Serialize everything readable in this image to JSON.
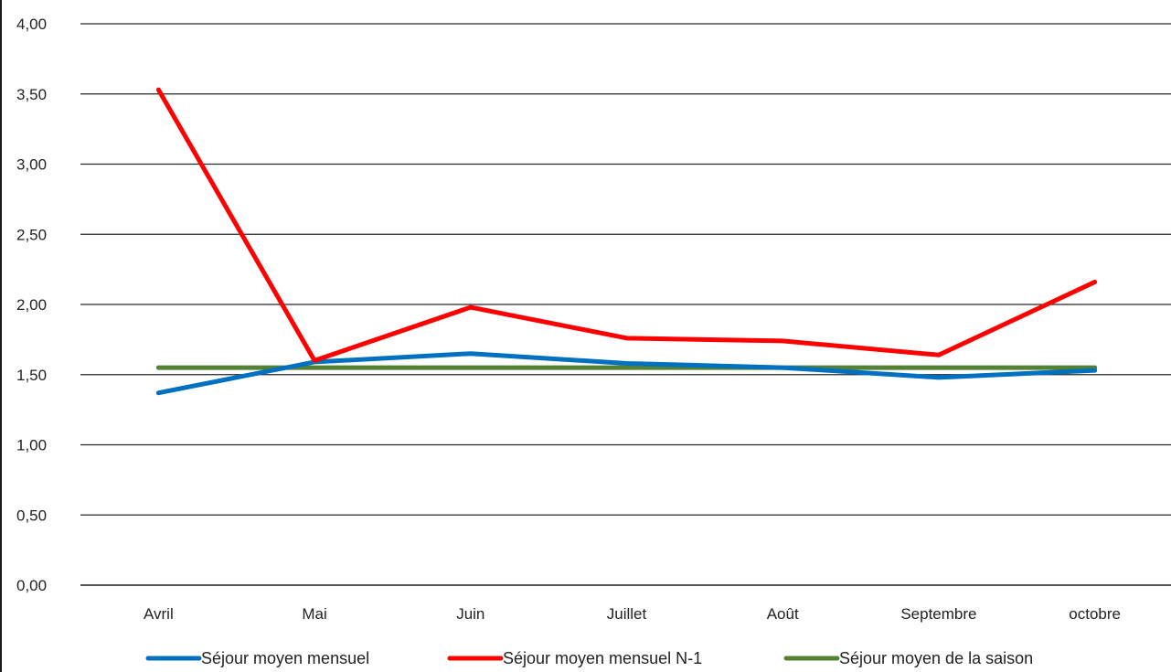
{
  "chart_data": {
    "type": "line",
    "categories": [
      "Avril",
      "Mai",
      "Juin",
      "Juillet",
      "Août",
      "Septembre",
      "octobre"
    ],
    "ylim": [
      0,
      4
    ],
    "yticks": [
      "0,00",
      "0,50",
      "1,00",
      "1,50",
      "2,00",
      "2,50",
      "3,00",
      "3,50",
      "4,00"
    ],
    "ytick_values": [
      0,
      0.5,
      1,
      1.5,
      2,
      2.5,
      3,
      3.5,
      4
    ],
    "grid": true,
    "legend_position": "bottom",
    "series": [
      {
        "name": "Séjour moyen mensuel",
        "color": "#0070C0",
        "values": [
          1.37,
          1.59,
          1.65,
          1.58,
          1.55,
          1.48,
          1.53
        ]
      },
      {
        "name": "Séjour moyen mensuel N-1",
        "color": "#FF0000",
        "values": [
          3.53,
          1.6,
          1.98,
          1.76,
          1.74,
          1.64,
          2.16
        ]
      },
      {
        "name": "Séjour moyen de la saison",
        "color": "#548235",
        "values": [
          1.55,
          1.55,
          1.55,
          1.55,
          1.55,
          1.55,
          1.55
        ]
      }
    ]
  }
}
